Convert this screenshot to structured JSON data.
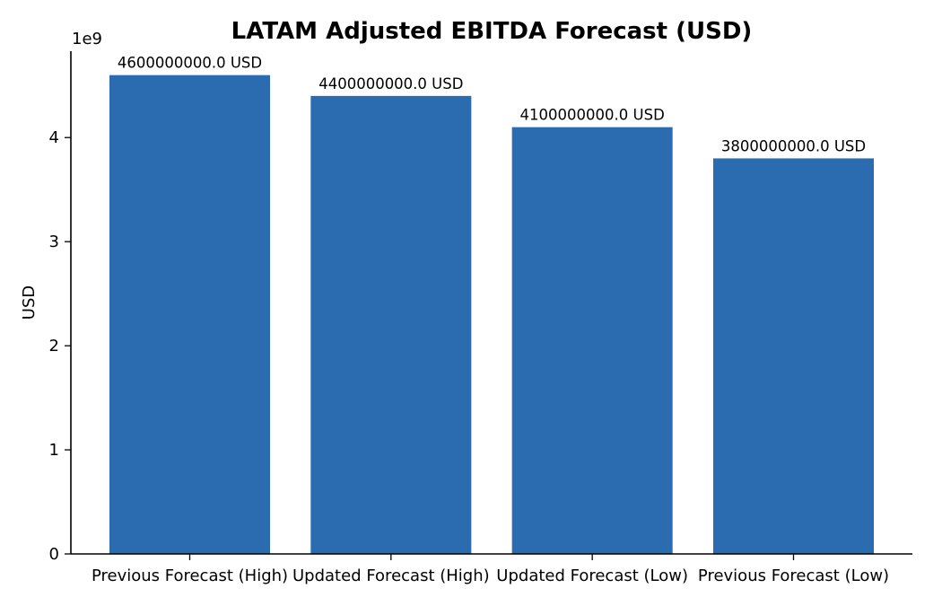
{
  "chart_data": {
    "type": "bar",
    "title": "LATAM Adjusted EBITDA Forecast (USD)",
    "xlabel": "",
    "ylabel": "USD",
    "y_offset_text": "1e9",
    "categories": [
      "Previous Forecast (High)",
      "Updated Forecast (High)",
      "Updated Forecast (Low)",
      "Previous Forecast (Low)"
    ],
    "values": [
      4600000000,
      4400000000,
      4100000000,
      3800000000
    ],
    "value_labels": [
      "4600000000.0 USD",
      "4400000000.0 USD",
      "4100000000.0 USD",
      "3800000000.0 USD"
    ],
    "ylim": [
      0,
      4830000000
    ],
    "yticks": [
      0,
      1000000000,
      2000000000,
      3000000000,
      4000000000
    ],
    "ytick_labels": [
      "0",
      "1",
      "2",
      "3",
      "4"
    ],
    "bar_color": "#2b6cb0",
    "grid": false,
    "legend": "none"
  }
}
